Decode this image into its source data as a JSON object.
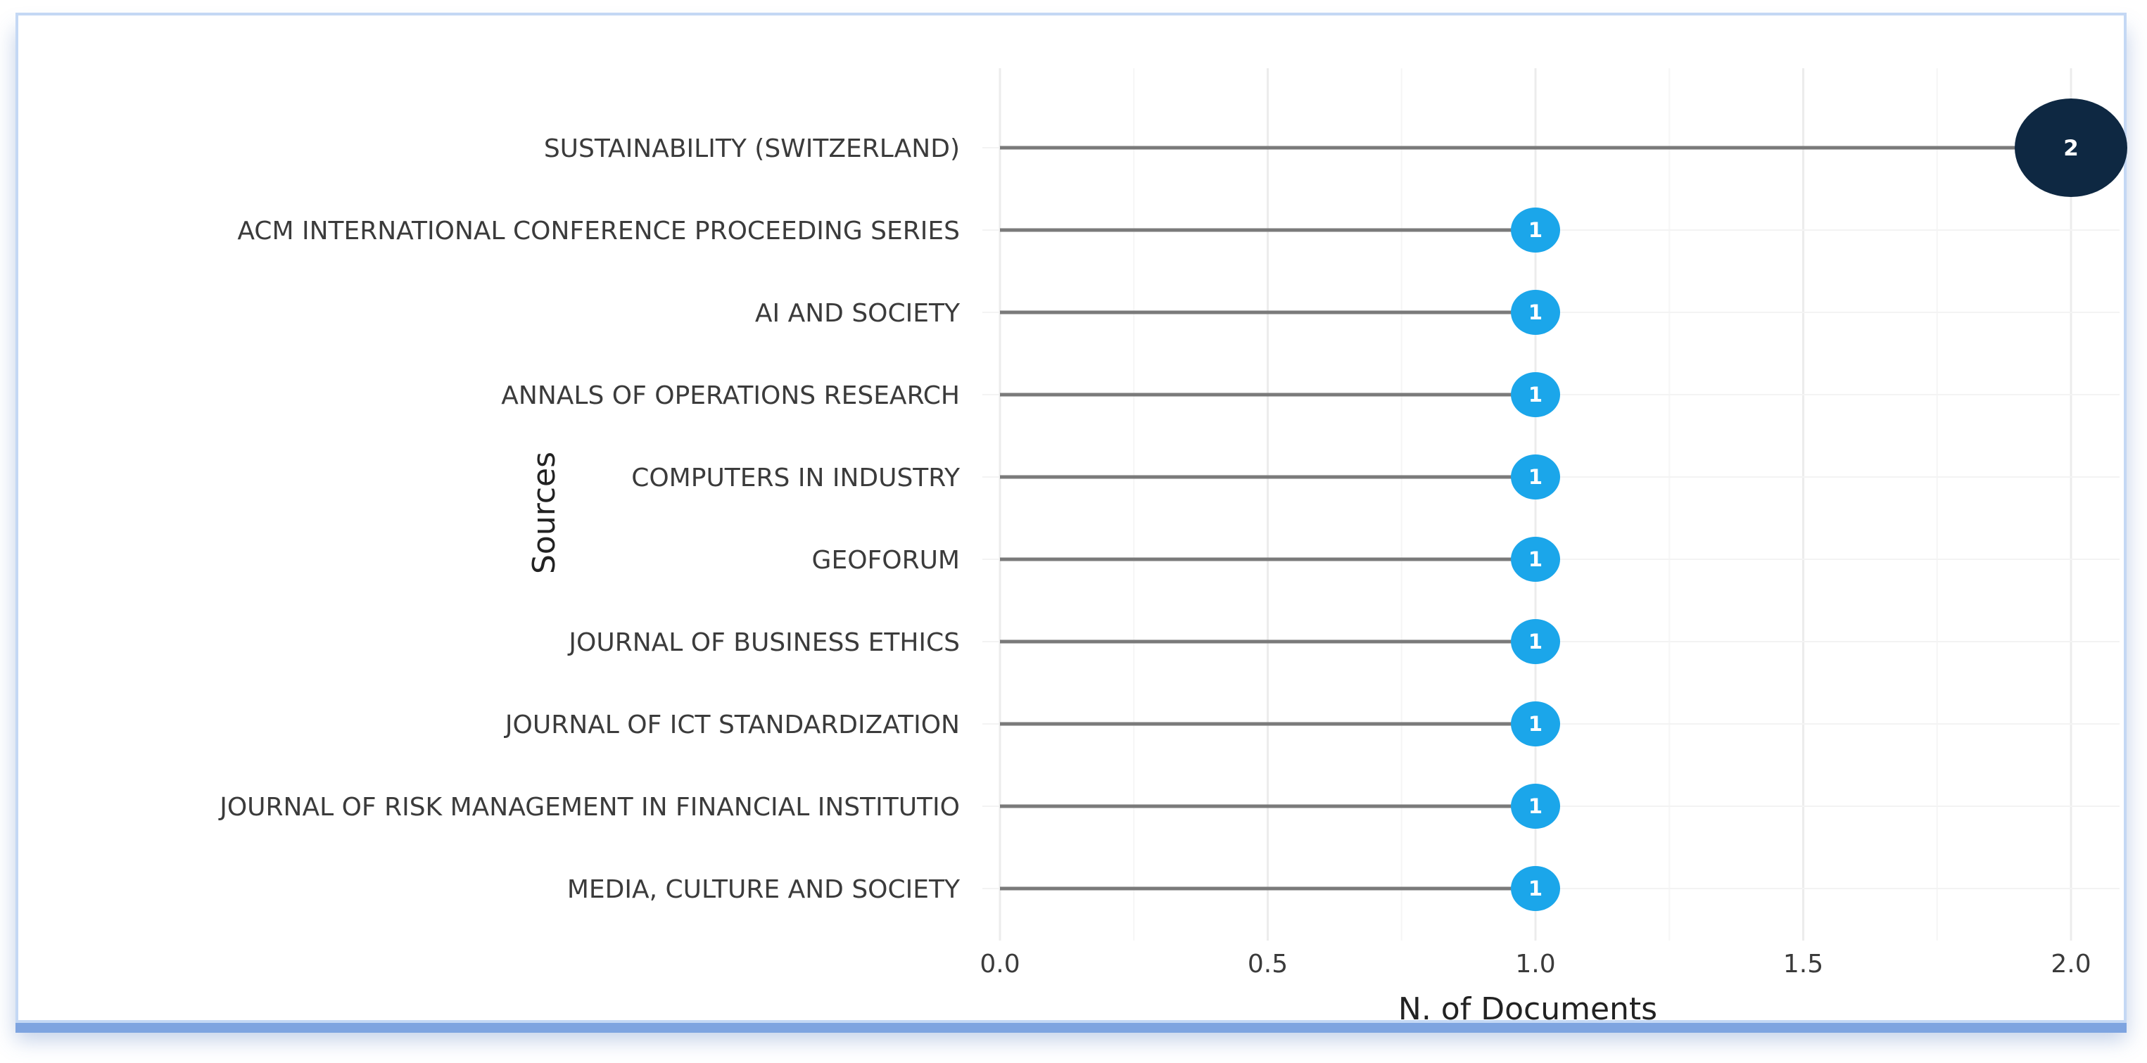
{
  "chart_data": {
    "type": "lollipop",
    "categories": [
      "SUSTAINABILITY (SWITZERLAND)",
      "ACM INTERNATIONAL CONFERENCE PROCEEDING SERIES",
      "AI AND SOCIETY",
      "ANNALS OF OPERATIONS RESEARCH",
      "COMPUTERS IN INDUSTRY",
      "GEOFORUM",
      "JOURNAL OF BUSINESS ETHICS",
      "JOURNAL OF ICT STANDARDIZATION",
      "JOURNAL OF RISK MANAGEMENT IN FINANCIAL INSTITUTIO",
      "MEDIA, CULTURE AND SOCIETY"
    ],
    "values": [
      2,
      1,
      1,
      1,
      1,
      1,
      1,
      1,
      1,
      1
    ],
    "xlabel": "N. of Documents",
    "ylabel": "Sources",
    "xlim": [
      0,
      2
    ],
    "xticks": [
      "0.0",
      "0.5",
      "1.0",
      "1.5",
      "2.0"
    ],
    "grid": true,
    "colors": {
      "max": "#0e2842",
      "other": "#1ba6ea",
      "stem": "#7a7a7a",
      "grid": "#ececec"
    }
  }
}
